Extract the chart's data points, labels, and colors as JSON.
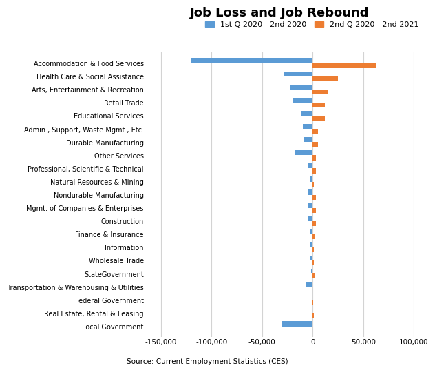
{
  "title": "Job Loss and Job Rebound",
  "legend_labels": [
    "1st Q 2020 - 2nd 2020",
    "2nd Q 2020 - 2nd 2021"
  ],
  "legend_colors": [
    "#5B9BD5",
    "#ED7D31"
  ],
  "source": "Source: Current Employment Statistics (CES)",
  "categories": [
    "Accommodation & Food Services",
    "Health Care & Social Assistance",
    "Arts, Entertainment & Recreation",
    "Retail Trade",
    "Educational Services",
    "Admin., Support, Waste Mgmt., Etc.",
    "Durable Manufacturing",
    "Other Services",
    "Professional, Scientific & Technical",
    "Natural Resources & Mining",
    "Nondurable Manufacturing",
    "Mgmt. of Companies & Enterprises",
    "Construction",
    "Finance & Insurance",
    "Information",
    "Wholesale Trade",
    "StateGovernment",
    "Transportation & Warehousing & Utilities",
    "Federal Government",
    "Real Estate, Rental & Leasing",
    "Local Government"
  ],
  "job_loss": [
    -120000,
    -28000,
    -22000,
    -20000,
    -12000,
    -10000,
    -9000,
    -18000,
    -5000,
    -2000,
    -4500,
    -4000,
    -4500,
    -2500,
    -2500,
    -2000,
    -1500,
    -7000,
    -1000,
    -500,
    -30000
  ],
  "job_rebound": [
    63000,
    25000,
    15000,
    12000,
    12000,
    5000,
    5000,
    3000,
    3000,
    1500,
    3000,
    3000,
    3000,
    2000,
    1500,
    1500,
    2000,
    0,
    500,
    1000,
    0
  ],
  "xlim": [
    -165000,
    100000
  ],
  "xticks": [
    -150000,
    -100000,
    -50000,
    0,
    50000,
    100000
  ],
  "xtick_labels": [
    "-150,000",
    "-100,000",
    "-50,000",
    "0",
    "50,000",
    "100,000"
  ],
  "background_color": "#FFFFFF",
  "bar_blue": "#5B9BD5",
  "bar_orange": "#ED7D31",
  "grid_color": "#D3D3D3"
}
